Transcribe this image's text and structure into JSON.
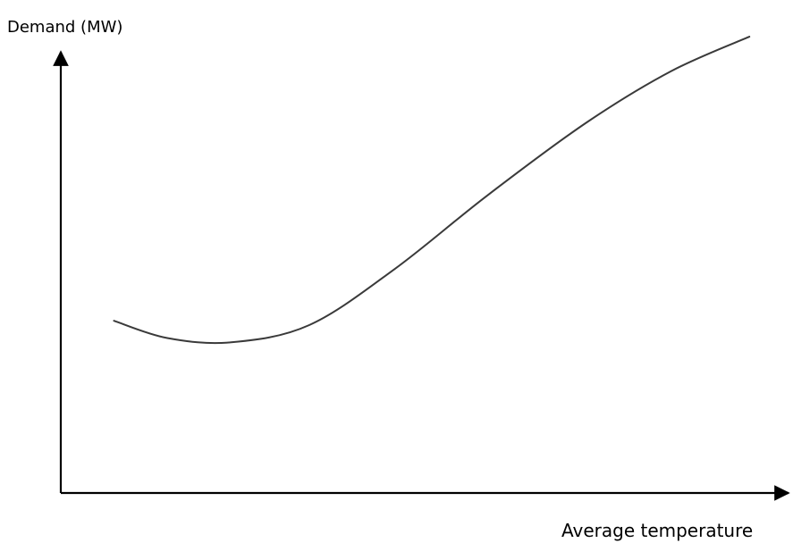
{
  "chart_data": {
    "type": "line",
    "title": "",
    "xlabel": "Average temperature",
    "ylabel": "Demand (MW)",
    "grid": false,
    "legend": "none",
    "xlim": [
      0,
      100
    ],
    "ylim": [
      0,
      100
    ],
    "series": [
      {
        "color": "#3a3a3a",
        "x": [
          7.5,
          15,
          24,
          35,
          47,
          60,
          74,
          86,
          97
        ],
        "y": [
          40,
          36,
          35,
          39,
          52,
          69,
          86,
          98,
          106
        ]
      }
    ]
  }
}
